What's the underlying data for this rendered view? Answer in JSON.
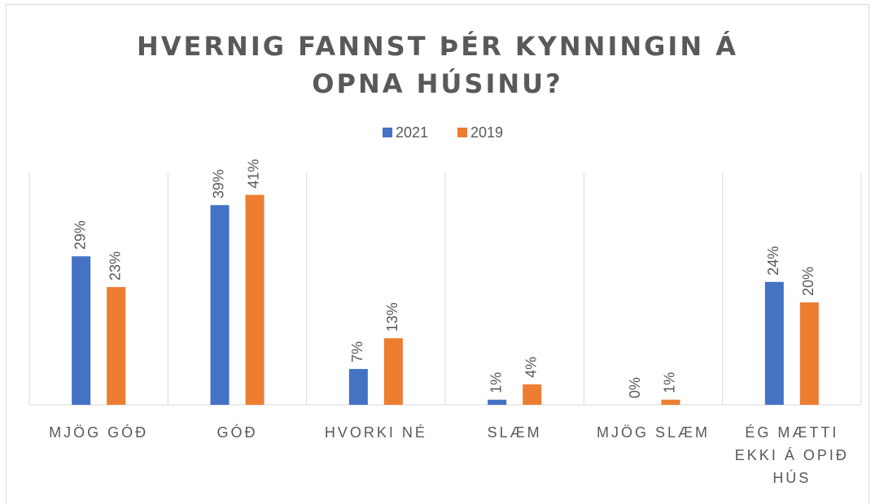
{
  "chart_data": {
    "type": "bar",
    "title": "HVERNIG FANNST ÞÉR KYNNINGIN Á OPNA HÚSINU?",
    "categories": [
      "MJÖG GÓÐ",
      "GÓÐ",
      "HVORKI NÉ",
      "SLÆM",
      "MJÖG SLÆM",
      "ÉG MÆTTI EKKI Á OPIÐ HÚS"
    ],
    "series": [
      {
        "name": "2021",
        "color": "#4472c4",
        "values": [
          29,
          39,
          7,
          1,
          0,
          24
        ],
        "value_labels": [
          "29%",
          "39%",
          "7%",
          "1%",
          "0%",
          "24%"
        ]
      },
      {
        "name": "2019",
        "color": "#ed7d31",
        "values": [
          23,
          41,
          13,
          4,
          1,
          20
        ],
        "value_labels": [
          "23%",
          "41%",
          "13%",
          "4%",
          "1%",
          "20%"
        ]
      }
    ],
    "legend": "top"
  }
}
